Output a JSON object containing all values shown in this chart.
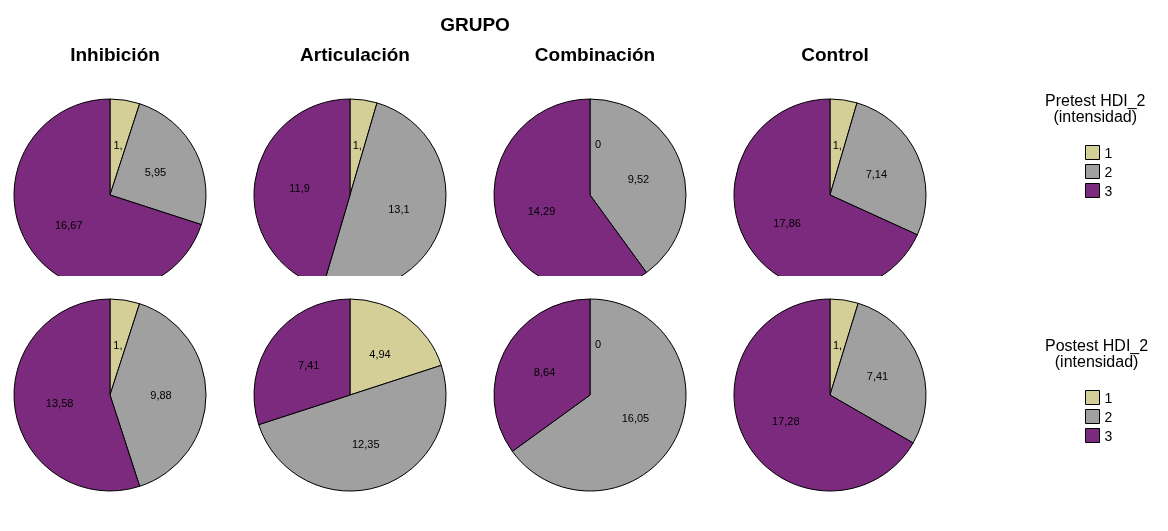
{
  "chart_data": [
    {
      "type": "pie",
      "title": "Inhibición",
      "annotations": [
        "GRUPO"
      ],
      "categories": [
        null,
        null,
        null
      ],
      "values": [
        1.19,
        5.95,
        16.67
      ],
      "value_labels": [
        "1,",
        "5,95",
        "16,67"
      ],
      "colors": [
        "#d4cf96",
        "#a0a0a0",
        "#7b2a7e"
      ]
    },
    {
      "type": "pie",
      "title": "Articulación",
      "categories": [
        null,
        null,
        null
      ],
      "values": [
        1.19,
        13.1,
        11.9
      ],
      "value_labels": [
        "1,",
        "13,1",
        "11,9"
      ],
      "colors": [
        "#d4cf96",
        "#a0a0a0",
        "#7b2a7e"
      ]
    },
    {
      "type": "pie",
      "title": "Combinación",
      "categories": [
        null,
        null,
        null
      ],
      "values": [
        0,
        9.52,
        14.29
      ],
      "value_labels": [
        "0",
        "9,52",
        "14,29"
      ],
      "colors": [
        "#d4cf96",
        "#a0a0a0",
        "#7b2a7e"
      ]
    },
    {
      "type": "pie",
      "title": "Control",
      "legend": "right",
      "legend_title": "Pretest HDI_2\n(intensidad)",
      "categories": [
        "1",
        "2",
        "3"
      ],
      "values": [
        1.19,
        7.14,
        17.86
      ],
      "value_labels": [
        "1,",
        "7,14",
        "17,86"
      ],
      "colors": [
        "#d4cf96",
        "#a0a0a0",
        "#7b2a7e"
      ]
    },
    {
      "type": "pie",
      "categories": [
        null,
        null,
        null
      ],
      "values": [
        1.23,
        9.88,
        13.58
      ],
      "value_labels": [
        "1,",
        "9,88",
        "13,58"
      ],
      "colors": [
        "#d4cf96",
        "#a0a0a0",
        "#7b2a7e"
      ]
    },
    {
      "type": "pie",
      "categories": [
        null,
        null,
        null
      ],
      "values": [
        4.94,
        12.35,
        7.41
      ],
      "value_labels": [
        "4,94",
        "12,35",
        "7,41"
      ],
      "colors": [
        "#d4cf96",
        "#a0a0a0",
        "#7b2a7e"
      ]
    },
    {
      "type": "pie",
      "categories": [
        null,
        null,
        null
      ],
      "values": [
        0,
        16.05,
        8.64
      ],
      "value_labels": [
        "0",
        "16,05",
        "8,64"
      ],
      "colors": [
        "#d4cf96",
        "#a0a0a0",
        "#7b2a7e"
      ]
    },
    {
      "type": "pie",
      "legend": "right",
      "legend_title": "Postest HDI_2\n(intensidad)",
      "categories": [
        "1",
        "2",
        "3"
      ],
      "values": [
        1.23,
        7.41,
        17.28
      ],
      "value_labels": [
        "1,",
        "7,41",
        "17,28"
      ],
      "colors": [
        "#d4cf96",
        "#a0a0a0",
        "#7b2a7e"
      ]
    }
  ]
}
